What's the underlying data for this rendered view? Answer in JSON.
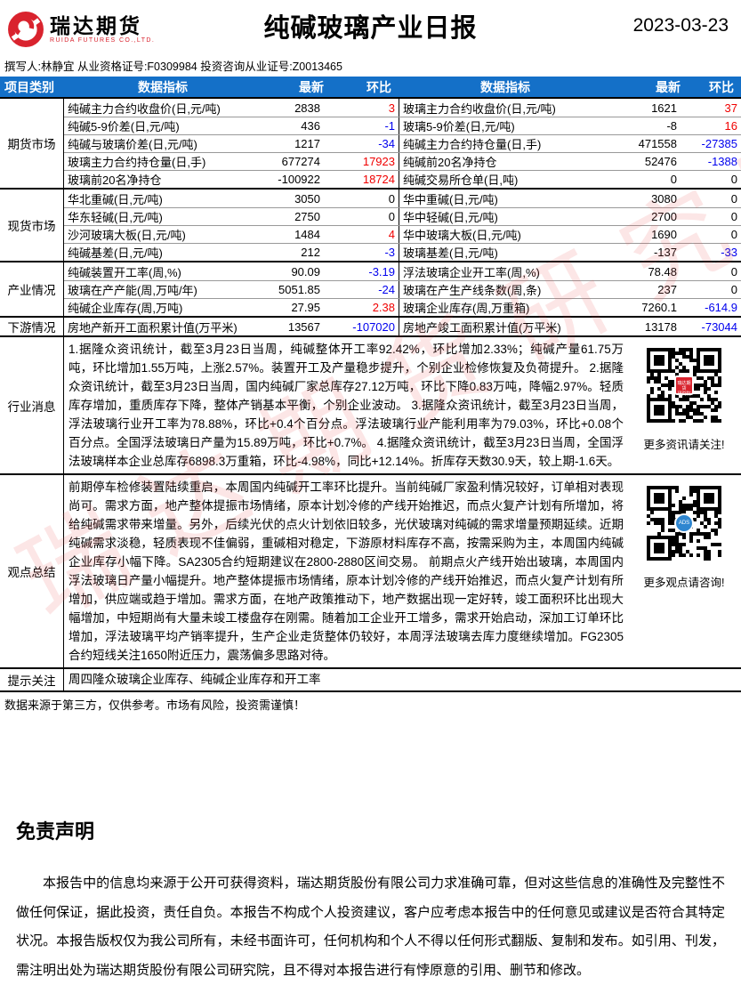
{
  "brand": {
    "name": "瑞达期货",
    "name_en": "RUIDA FUTURES CO.,LTD."
  },
  "report": {
    "title": "纯碱玻璃产业日报",
    "date": "2023-03-23",
    "author_line": "撰写人:林静宜 从业资格证号:F0309984 投资咨询从业证号:Z0013465"
  },
  "table_header": {
    "category": "项目类别",
    "indicator": "数据指标",
    "latest": "最新",
    "change": "环比",
    "indicator2": "数据指标",
    "latest2": "最新",
    "change2": "环比"
  },
  "sections": {
    "futures": {
      "category": "期货市场",
      "rows": [
        {
          "l_label": "纯碱主力合约收盘价(日,元/吨)",
          "l_latest": "2838",
          "l_change": "3",
          "r_label": "玻璃主力合约收盘价(日,元/吨)",
          "r_latest": "1621",
          "r_change": "37"
        },
        {
          "l_label": "纯碱5-9价差(日,元/吨)",
          "l_latest": "436",
          "l_change": "-1",
          "r_label": "玻璃5-9价差(日,元/吨)",
          "r_latest": "-8",
          "r_change": "16"
        },
        {
          "l_label": "纯碱与玻璃价差(日,元/吨)",
          "l_latest": "1217",
          "l_change": "-34",
          "r_label": "纯碱主力合约持仓量(日,手)",
          "r_latest": "471558",
          "r_change": "-27385"
        },
        {
          "l_label": "玻璃主力合约持仓量(日,手)",
          "l_latest": "677274",
          "l_change": "17923",
          "r_label": "纯碱前20名净持仓",
          "r_latest": "52476",
          "r_change": "-1388"
        },
        {
          "l_label": "玻璃前20名净持仓",
          "l_latest": "-100922",
          "l_change": "18724",
          "r_label": "纯碱交易所仓单(日,吨)",
          "r_latest": "0",
          "r_change": "0"
        }
      ]
    },
    "spot": {
      "category": "现货市场",
      "rows": [
        {
          "l_label": "华北重碱(日,元/吨)",
          "l_latest": "3050",
          "l_change": "0",
          "r_label": "华中重碱(日,元/吨)",
          "r_latest": "3080",
          "r_change": "0"
        },
        {
          "l_label": "华东轻碱(日,元/吨)",
          "l_latest": "2750",
          "l_change": "0",
          "r_label": "华中轻碱(日,元/吨)",
          "r_latest": "2700",
          "r_change": "0"
        },
        {
          "l_label": "沙河玻璃大板(日,元/吨)",
          "l_latest": "1484",
          "l_change": "4",
          "r_label": "华中玻璃大板(日,元/吨)",
          "r_latest": "1690",
          "r_change": "0"
        },
        {
          "l_label": "纯碱基差(日,元/吨)",
          "l_latest": "212",
          "l_change": "-3",
          "r_label": "玻璃基差(日,元/吨)",
          "r_latest": "-137",
          "r_change": "-33"
        }
      ]
    },
    "industry": {
      "category": "产业情况",
      "rows": [
        {
          "l_label": "纯碱装置开工率(周,%)",
          "l_latest": "90.09",
          "l_change": "-3.19",
          "r_label": "浮法玻璃企业开工率(周,%)",
          "r_latest": "78.48",
          "r_change": "0"
        },
        {
          "l_label": "玻璃在产产能(周,万吨/年)",
          "l_latest": "5051.85",
          "l_change": "-24",
          "r_label": "玻璃在产生产线条数(周,条)",
          "r_latest": "237",
          "r_change": "0"
        },
        {
          "l_label": "纯碱企业库存(周,万吨)",
          "l_latest": "27.95",
          "l_change": "2.38",
          "r_label": "玻璃企业库存(周,万重箱)",
          "r_latest": "7260.1",
          "r_change": "-614.9"
        }
      ]
    },
    "downstream": {
      "category": "下游情况",
      "rows": [
        {
          "l_label": "房地产新开工面积累计值(万平米)",
          "l_latest": "13567",
          "l_change": "-107020",
          "r_label": "房地产竣工面积累计值(万平米)",
          "r_latest": "13178",
          "r_change": "-73044"
        }
      ]
    }
  },
  "news": {
    "category": "行业消息",
    "text": "1.据隆众资讯统计，截至3月23日当周，纯碱整体开工率92.42%，环比增加2.33%；纯碱产量61.75万吨，环比增加1.55万吨，上涨2.57%。装置开工及产量稳步提升，个别企业检修恢复及负荷提升。 2.据隆众资讯统计，截至3月23日当周，国内纯碱厂家总库存27.12万吨，环比下降0.83万吨，降幅2.97%。轻质库存增加，重质库存下降，整体产销基本平衡，个别企业波动。 3.据隆众资讯统计，截至3月23日当周，浮法玻璃行业开工率为78.88%，环比+0.4个百分点。浮法玻璃行业产能利用率为79.03%，环比+0.08个百分点。全国浮法玻璃日产量为15.89万吨，环比+0.7%。 4.据隆众资讯统计，截至3月23日当周，全国浮法玻璃样本企业总库存6898.3万重箱，环比-4.98%，同比+12.14%。折库存天数30.9天，较上期-1.6天。",
    "qr_caption": "更多资讯请关注!"
  },
  "summary": {
    "category": "观点总结",
    "text": "前期停车检修装置陆续重启，本周国内纯碱开工率环比提升。当前纯碱厂家盈利情况较好，订单相对表现尚可。需求方面，地产整体提振市场情绪，原本计划冷修的产线开始推迟，而点火复产计划有所增加，将给纯碱需求带来增量。另外，后续光伏的点火计划依旧较多，光伏玻璃对纯碱的需求增量预期延续。近期纯碱需求淡稳，轻质表现不佳偏弱，重碱相对稳定，下游原材料库存不高，按需采购为主，本周国内纯碱企业库存小幅下降。SA2305合约短期建议在2800-2880区间交易。 前期点火产线开始出玻璃，本周国内浮法玻璃日产量小幅提升。地产整体提振市场情绪，原本计划冷修的产线开始推迟，而点火复产计划有所增加，供应端或趋于增加。需求方面，在地产政策推动下，地产数据出现一定好转，竣工面积环比出现大幅增加，中短期尚有大量未竣工楼盘存在刚需。随着加工企业开工增多，需求开始启动，深加工订单环比增加，浮法玻璃平均产销率提升，生产企业走货整体仍较好，本周浮法玻璃去库力度继续增加。FG2305合约短线关注1650附近压力，震荡偏多思路对待。",
    "qr_caption": "更多观点请咨询!"
  },
  "focus": {
    "category": "提示关注",
    "text": "周四隆众玻璃企业库存、纯碱企业库存和开工率"
  },
  "footer_note": "数据来源于第三方，仅供参考。市场有风险，投资需谨慎！",
  "disclaimer": {
    "title": "免责声明",
    "body": "本报告中的信息均来源于公开可获得资料，瑞达期货股份有限公司力求准确可靠，但对这些信息的准确性及完整性不做任何保证，据此投资，责任自负。本报告不构成个人投资建议，客户应考虑本报告中的任何意见或建议是否符合其特定状况。本报告版权仅为我公司所有，未经书面许可，任何机构和个人不得以任何形式翻版、复制和发布。如引用、刊发，需注明出处为瑞达期货股份有限公司研究院，且不得对本报告进行有悖原意的引用、删节和修改。"
  },
  "watermark": "瑞达期货研究院",
  "colors": {
    "header_bg": "#1470c8",
    "positive": "#f00000",
    "negative": "#0000ee",
    "brand_red": "#d9232e"
  }
}
